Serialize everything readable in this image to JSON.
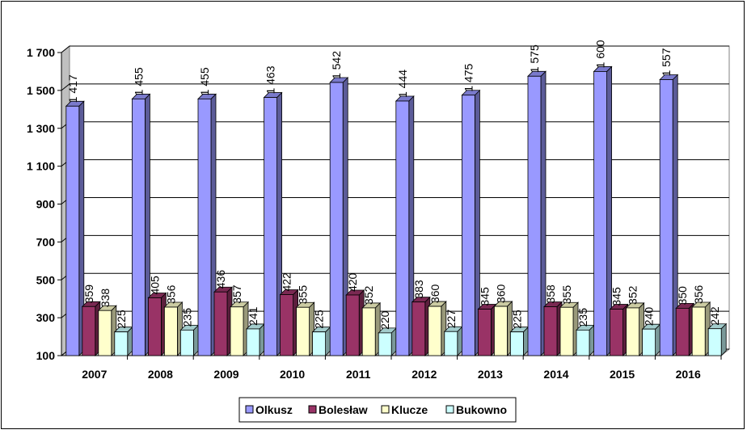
{
  "chart_data": {
    "type": "bar",
    "categories": [
      "2007",
      "2008",
      "2009",
      "2010",
      "2011",
      "2012",
      "2013",
      "2014",
      "2015",
      "2016"
    ],
    "series": [
      {
        "name": "Olkusz",
        "color": "#9999ff",
        "values": [
          1417,
          1455,
          1455,
          1463,
          1542,
          1444,
          1475,
          1575,
          1600,
          1557
        ]
      },
      {
        "name": "Bolesław",
        "color": "#993366",
        "values": [
          359,
          405,
          436,
          422,
          420,
          383,
          345,
          358,
          345,
          350
        ]
      },
      {
        "name": "Klucze",
        "color": "#ffffcc",
        "values": [
          338,
          356,
          357,
          355,
          352,
          360,
          360,
          355,
          352,
          356
        ]
      },
      {
        "name": "Bukowno",
        "color": "#ccffff",
        "values": [
          225,
          235,
          241,
          225,
          220,
          227,
          225,
          235,
          240,
          242
        ]
      }
    ],
    "data_labels": [
      [
        "1 417",
        "1 455",
        "1 455",
        "1 463",
        "1 542",
        "1 444",
        "1 475",
        "1 575",
        "1 600",
        "1 557"
      ],
      [
        "359",
        "405",
        "436",
        "422",
        "420",
        "383",
        "345",
        "358",
        "345",
        "350"
      ],
      [
        "338",
        "356",
        "357",
        "355",
        "352",
        "360",
        "360",
        "355",
        "352",
        "356"
      ],
      [
        "225",
        "235",
        "241",
        "225",
        "220",
        "227",
        "225",
        "235",
        "240",
        "242"
      ]
    ],
    "yticks": [
      {
        "value": 100,
        "label": "100"
      },
      {
        "value": 300,
        "label": "300"
      },
      {
        "value": 500,
        "label": "500"
      },
      {
        "value": 700,
        "label": "700"
      },
      {
        "value": 900,
        "label": "900"
      },
      {
        "value": 1100,
        "label": "1 100"
      },
      {
        "value": 1300,
        "label": "1 300"
      },
      {
        "value": 1500,
        "label": "1 500"
      },
      {
        "value": 1700,
        "label": "1 700"
      }
    ],
    "ylim": [
      100,
      1700
    ],
    "grid": true,
    "three_d": true,
    "legend_position": "bottom"
  }
}
